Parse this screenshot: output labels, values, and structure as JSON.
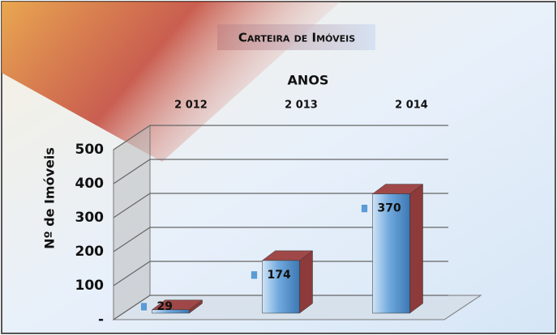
{
  "chart_data": {
    "type": "bar3d",
    "title": "Carteira de Imóveis",
    "x_label": "ANOS",
    "y_label": "Nº de Imóveis",
    "categories": [
      "2 012",
      "2 013",
      "2 014"
    ],
    "values": [
      29,
      174,
      370
    ],
    "color": "#5b9bd5",
    "ylim": [
      0,
      500
    ],
    "yticks": [
      {
        "value": 0,
        "label": "-"
      },
      100,
      200,
      300,
      400,
      500
    ],
    "grid": true
  }
}
